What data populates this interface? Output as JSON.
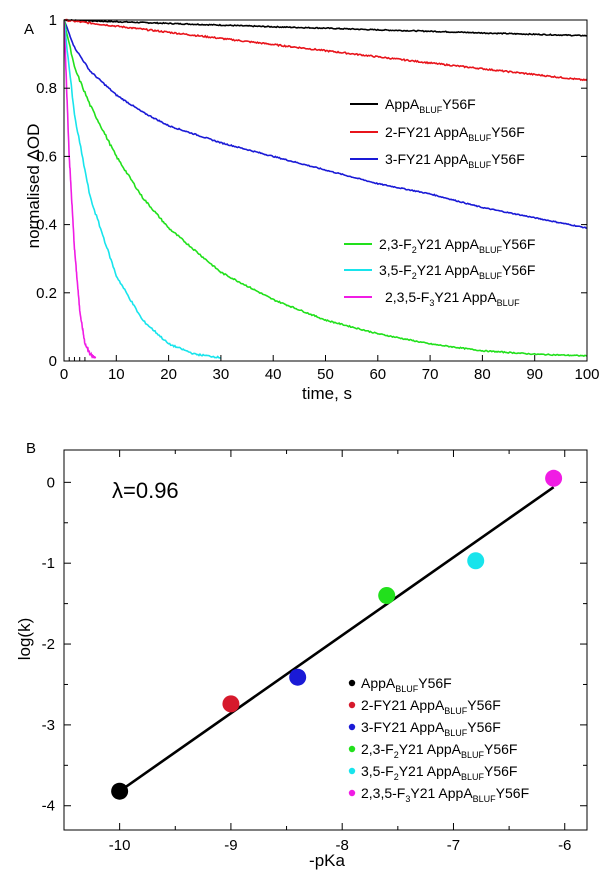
{
  "chart_data": [
    {
      "panel_label": "A",
      "type": "line",
      "xlabel": "time, s",
      "ylabel": "normalised ΔOD",
      "xlim": [
        0,
        100
      ],
      "ylim": [
        0,
        1
      ],
      "xticks": [
        0,
        10,
        20,
        30,
        40,
        50,
        60,
        70,
        80,
        90,
        100
      ],
      "yticks": [
        0,
        0.2,
        0.4,
        0.6,
        0.8,
        1
      ],
      "ytick_labels": [
        "0",
        "0.2",
        "0.4",
        "0.6",
        "0.8",
        "1"
      ],
      "legend_position": "right",
      "series": [
        {
          "name": "AppA_BLUF Y56F",
          "label_parts": [
            {
              "t": "AppA"
            },
            {
              "t": "BLUF",
              "sub": true
            },
            {
              "t": "Y56F"
            }
          ],
          "color": "#000000",
          "x_end": 100,
          "x": [
            0,
            10,
            20,
            30,
            40,
            50,
            60,
            70,
            80,
            90,
            100
          ],
          "y": [
            1.0,
            0.995,
            0.99,
            0.985,
            0.98,
            0.976,
            0.971,
            0.967,
            0.962,
            0.958,
            0.954
          ]
        },
        {
          "name": "2-FY21 AppA_BLUF Y56F",
          "label_parts": [
            {
              "t": "2-FY21 AppA"
            },
            {
              "t": "BLUF",
              "sub": true
            },
            {
              "t": "Y56F"
            }
          ],
          "color": "#e8141b",
          "x_end": 100,
          "x": [
            0,
            10,
            20,
            30,
            40,
            50,
            60,
            70,
            80,
            90,
            100
          ],
          "y": [
            1.0,
            0.982,
            0.964,
            0.946,
            0.928,
            0.91,
            0.892,
            0.874,
            0.857,
            0.84,
            0.823
          ]
        },
        {
          "name": "3-FY21 AppA_BLUF Y56F",
          "label_parts": [
            {
              "t": "3-FY21 AppA"
            },
            {
              "t": "BLUF",
              "sub": true
            },
            {
              "t": "Y56F"
            }
          ],
          "color": "#1a1ad6",
          "x_end": 100,
          "x": [
            0,
            2,
            5,
            10,
            15,
            20,
            30,
            40,
            50,
            60,
            70,
            80,
            90,
            100
          ],
          "y": [
            1.0,
            0.92,
            0.85,
            0.78,
            0.73,
            0.69,
            0.64,
            0.6,
            0.56,
            0.52,
            0.49,
            0.45,
            0.42,
            0.39
          ]
        },
        {
          "name": "2,3-F2Y21 AppA_BLUF Y56F",
          "label_parts": [
            {
              "t": "2,3-F"
            },
            {
              "t": "2",
              "sub": true
            },
            {
              "t": "Y21 AppA"
            },
            {
              "t": "BLUF",
              "sub": true
            },
            {
              "t": "Y56F"
            }
          ],
          "color": "#22e01c",
          "x_end": 100,
          "x": [
            0,
            2,
            5,
            10,
            15,
            20,
            30,
            40,
            50,
            60,
            70,
            80,
            90,
            100
          ],
          "y": [
            1.0,
            0.86,
            0.75,
            0.6,
            0.48,
            0.39,
            0.26,
            0.18,
            0.12,
            0.08,
            0.05,
            0.03,
            0.02,
            0.015
          ]
        },
        {
          "name": "3,5-F2Y21 AppA_BLUF Y56F",
          "label_parts": [
            {
              "t": "3,5-F"
            },
            {
              "t": "2",
              "sub": true
            },
            {
              "t": "Y21 AppA"
            },
            {
              "t": "BLUF",
              "sub": true
            },
            {
              "t": "Y56F"
            }
          ],
          "color": "#18e4ec",
          "x_end": 30,
          "x": [
            0,
            2,
            5,
            10,
            15,
            20,
            25,
            30
          ],
          "y": [
            1.0,
            0.72,
            0.48,
            0.25,
            0.12,
            0.05,
            0.02,
            0.01
          ]
        },
        {
          "name": "2,3,5-F3Y21 AppA_BLUF",
          "label_parts": [
            {
              "t": "2,3,5-F"
            },
            {
              "t": "3",
              "sub": true
            },
            {
              "t": "Y21 AppA"
            },
            {
              "t": "BLUF",
              "sub": true
            }
          ],
          "color": "#f01ce4",
          "x_end": 6,
          "x": [
            0,
            1,
            2,
            3,
            4,
            5,
            6
          ],
          "y": [
            1.0,
            0.6,
            0.33,
            0.15,
            0.05,
            0.02,
            0.01
          ]
        }
      ]
    },
    {
      "panel_label": "B",
      "type": "scatter",
      "xlabel": "-pKa",
      "ylabel": "log(k)",
      "xlim": [
        -10.5,
        -5.8
      ],
      "ylim": [
        -4.3,
        0.4
      ],
      "xticks": [
        -10,
        -9,
        -8,
        -7,
        -6
      ],
      "yticks": [
        0,
        -1,
        -2,
        -3,
        -4
      ],
      "annotation": "λ=0.96",
      "legend_position": "bottom-right",
      "fit_line": {
        "x": [
          -10.0,
          -6.1
        ],
        "y": [
          -3.82,
          -0.06
        ]
      },
      "points": [
        {
          "name": "AppA_BLUF Y56F",
          "label_parts": [
            {
              "t": "AppA"
            },
            {
              "t": "BLUF",
              "sub": true
            },
            {
              "t": "Y56F"
            }
          ],
          "x": -10.0,
          "y": -3.82,
          "color": "#000000"
        },
        {
          "name": "2-FY21 AppA_BLUF Y56F",
          "label_parts": [
            {
              "t": "2-FY21 AppA"
            },
            {
              "t": "BLUF",
              "sub": true
            },
            {
              "t": "Y56F"
            }
          ],
          "x": -9.0,
          "y": -2.74,
          "color": "#d6192c"
        },
        {
          "name": "3-FY21 AppA_BLUF Y56F",
          "label_parts": [
            {
              "t": "3-FY21 AppA"
            },
            {
              "t": "BLUF",
              "sub": true
            },
            {
              "t": "Y56F"
            }
          ],
          "x": -8.4,
          "y": -2.41,
          "color": "#1a1ad6"
        },
        {
          "name": "2,3-F2Y21 AppA_BLUF Y56F",
          "label_parts": [
            {
              "t": "2,3-F"
            },
            {
              "t": "2",
              "sub": true
            },
            {
              "t": "Y21 AppA"
            },
            {
              "t": "BLUF",
              "sub": true
            },
            {
              "t": "Y56F"
            }
          ],
          "x": -7.6,
          "y": -1.4,
          "color": "#22e01c"
        },
        {
          "name": "3,5-F2Y21 AppA_BLUF Y56F",
          "label_parts": [
            {
              "t": "3,5-F"
            },
            {
              "t": "2",
              "sub": true
            },
            {
              "t": "Y21 AppA"
            },
            {
              "t": "BLUF",
              "sub": true
            },
            {
              "t": "Y56F"
            }
          ],
          "x": -6.8,
          "y": -0.97,
          "color": "#18e4ec"
        },
        {
          "name": "2,3,5-F3Y21 AppA_BLUF Y56F",
          "label_parts": [
            {
              "t": "2,3,5-F"
            },
            {
              "t": "3",
              "sub": true
            },
            {
              "t": "Y21 AppA"
            },
            {
              "t": "BLUF",
              "sub": true
            },
            {
              "t": "Y56F"
            }
          ],
          "x": -6.1,
          "y": 0.05,
          "color": "#f01ce4"
        }
      ]
    }
  ]
}
